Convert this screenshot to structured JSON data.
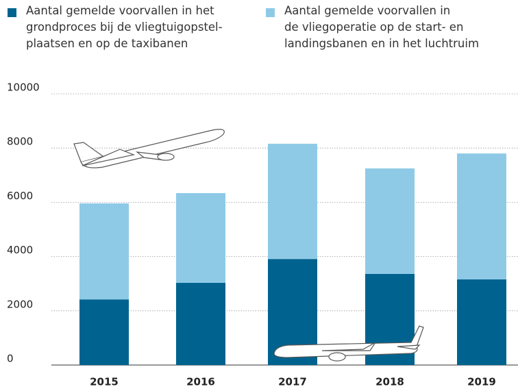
{
  "chart_data": {
    "type": "stacked-bar",
    "categories": [
      "2015",
      "2016",
      "2017",
      "2018",
      "2019"
    ],
    "series": [
      {
        "name": "Aantal gemelde voorvallen in het\ngrondproces bij de vliegtuigopstel-\nplaatsen en op de taxibanen",
        "color": "#00638f",
        "values": [
          2420,
          3030,
          3910,
          3360,
          3160
        ]
      },
      {
        "name": "Aantal gemelde voorvallen in\nde vliegoperatie op de start- en\nlandingsbanen en in het luchtruim",
        "color": "#8ecae6",
        "values": [
          3540,
          3310,
          4250,
          3890,
          4640
        ]
      }
    ],
    "ylim": [
      0,
      10000
    ],
    "yticks": [
      0,
      2000,
      4000,
      6000,
      8000,
      10000
    ],
    "grid": true
  }
}
